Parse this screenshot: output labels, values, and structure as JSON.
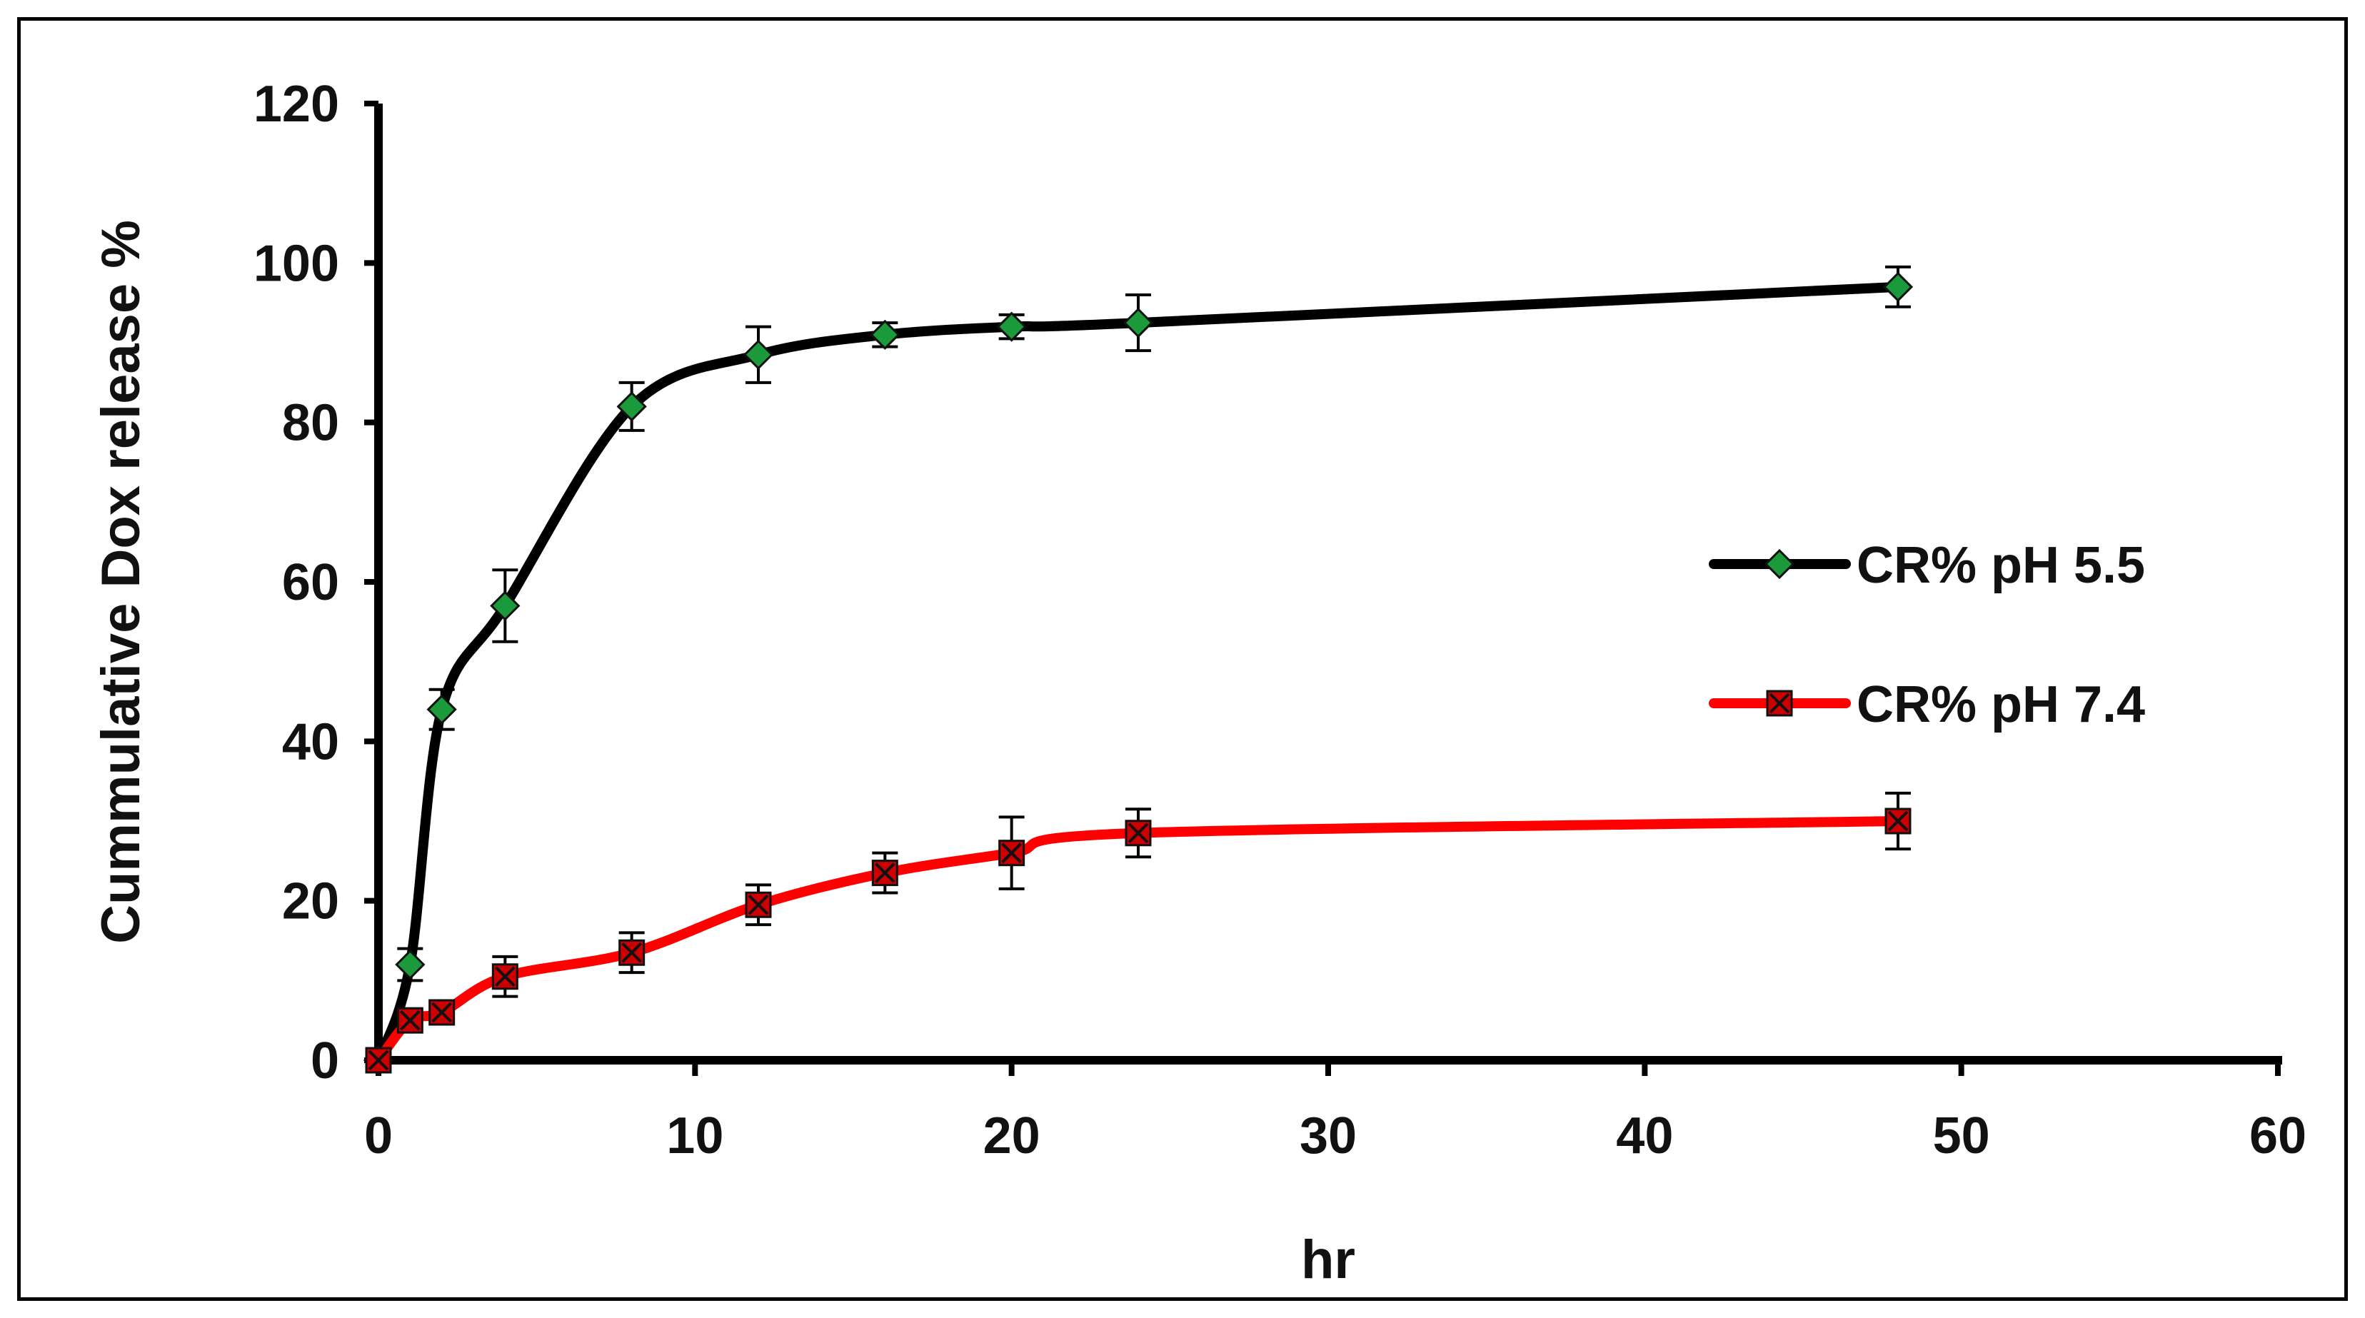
{
  "chart_data": {
    "type": "line",
    "xlabel": "hr",
    "ylabel": "Cummulative Dox release  %",
    "xlim": [
      0,
      60
    ],
    "ylim": [
      0,
      120
    ],
    "x_ticks": [
      0,
      10,
      20,
      30,
      40,
      50,
      60
    ],
    "y_ticks": [
      0,
      20,
      40,
      60,
      80,
      100,
      120
    ],
    "grid": false,
    "legend_position": "right",
    "smooth": true,
    "series": [
      {
        "name": "CR% pH 5.5",
        "color": "#000000",
        "marker": "diamond",
        "marker_color": "#1a9a3a",
        "x": [
          0,
          1,
          2,
          4,
          8,
          12,
          16,
          20,
          24,
          48
        ],
        "y": [
          0,
          12,
          44,
          57,
          82,
          88.5,
          91,
          92,
          92.5,
          97
        ],
        "error": [
          0,
          2,
          2.5,
          4.5,
          3,
          3.5,
          1.5,
          1.5,
          3.5,
          2.5
        ]
      },
      {
        "name": "CR% pH 7.4",
        "color": "#ff0000",
        "marker": "square-x",
        "marker_color": "#cc0000",
        "x": [
          0,
          1,
          2,
          4,
          8,
          12,
          16,
          20,
          24,
          48
        ],
        "y": [
          0,
          5,
          6,
          10.5,
          13.5,
          19.5,
          23.5,
          26,
          28.5,
          30
        ],
        "error": [
          0,
          1,
          1,
          2.5,
          2.5,
          2.5,
          2.5,
          4.5,
          3,
          3.5
        ]
      }
    ]
  }
}
